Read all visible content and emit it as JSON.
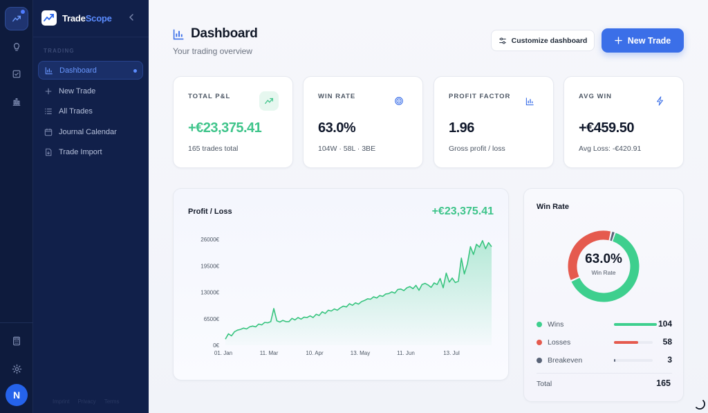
{
  "brand": {
    "name_part1": "Trade",
    "name_part2": "Scope"
  },
  "sidebar": {
    "section_label": "TRADING",
    "items": [
      {
        "label": "Dashboard",
        "icon": "bar-chart-icon",
        "active": true
      },
      {
        "label": "New Trade",
        "icon": "plus-icon"
      },
      {
        "label": "All Trades",
        "icon": "list-icon"
      },
      {
        "label": "Journal Calendar",
        "icon": "calendar-icon"
      },
      {
        "label": "Trade Import",
        "icon": "file-import-icon"
      }
    ],
    "footer": {
      "imprint": "Imprint",
      "privacy": "Privacy",
      "terms": "Terms"
    }
  },
  "rail": {
    "avatar_initial": "N"
  },
  "header": {
    "title": "Dashboard",
    "subtitle": "Your trading overview",
    "customize_label": "Customize dashboard",
    "new_trade_label": "New Trade"
  },
  "kpis": [
    {
      "label": "TOTAL P&L",
      "value": "+€23,375.41",
      "sub": "165 trades total",
      "icon": "trending-up-icon",
      "positive": true
    },
    {
      "label": "WIN RATE",
      "value": "63.0%",
      "sub": "104W · 58L · 3BE",
      "icon": "target-icon"
    },
    {
      "label": "PROFIT FACTOR",
      "value": "1.96",
      "sub": "Gross profit / loss",
      "icon": "bar-chart-icon"
    },
    {
      "label": "AVG WIN",
      "value": "+€459.50",
      "sub": "Avg Loss: -€420.91",
      "icon": "lightning-icon"
    }
  ],
  "pl_card": {
    "title": "Profit / Loss",
    "total": "+€23,375.41"
  },
  "winrate_card": {
    "title": "Win Rate",
    "center_value": "63.0%",
    "center_label": "Win Rate",
    "rows": [
      {
        "name": "Wins",
        "count": "104",
        "color": "#3ecf8e"
      },
      {
        "name": "Losses",
        "count": "58",
        "color": "#e55a4e"
      },
      {
        "name": "Breakeven",
        "count": "3",
        "color": "#5a6478"
      }
    ],
    "total_label": "Total",
    "total_value": "165"
  },
  "chart_data": [
    {
      "type": "area",
      "title": "Profit / Loss",
      "x_tick_labels": [
        "01. Jan",
        "11. Mar",
        "10. Apr",
        "13. May",
        "11. Jun",
        "13. Jul"
      ],
      "y_tick_labels": [
        "26000€",
        "19500€",
        "13000€",
        "6500€",
        "0€"
      ],
      "ylim": [
        0,
        26000
      ],
      "y_ticks": [
        0,
        6500,
        13000,
        19500,
        26000
      ],
      "series": [
        {
          "values": [
            1500,
            2800,
            2300,
            3300,
            3700,
            3900,
            4200,
            4000,
            4500,
            4700,
            4500,
            5200,
            5000,
            5600,
            5500,
            5800,
            9000,
            6000,
            5700,
            6100,
            5800,
            5800,
            6600,
            6200,
            6800,
            6400,
            6900,
            6800,
            7200,
            6800,
            7600,
            7300,
            8200,
            7800,
            8600,
            8400,
            8900,
            8600,
            9200,
            9600,
            9400,
            10200,
            9800,
            10400,
            10100,
            10700,
            11000,
            11400,
            11300,
            11900,
            11600,
            12200,
            12000,
            12600,
            12700,
            13100,
            12800,
            13700,
            13800,
            13400,
            14100,
            14400,
            13900,
            14700,
            13500,
            14900,
            15200,
            14800,
            14200,
            15300,
            14900,
            16400,
            14100,
            17700,
            15500,
            16500,
            15400,
            15700,
            21400,
            17500,
            20000,
            24200,
            22300,
            24800,
            24100,
            25700,
            23700,
            25200,
            24200
          ]
        }
      ],
      "grid": false,
      "legend": "none"
    },
    {
      "type": "pie",
      "title": "Win Rate",
      "categories": [
        "Wins",
        "Losses",
        "Breakeven"
      ],
      "values": [
        104,
        58,
        3
      ],
      "colors": [
        "#3ecf8e",
        "#e55a4e",
        "#5a6478"
      ]
    }
  ]
}
